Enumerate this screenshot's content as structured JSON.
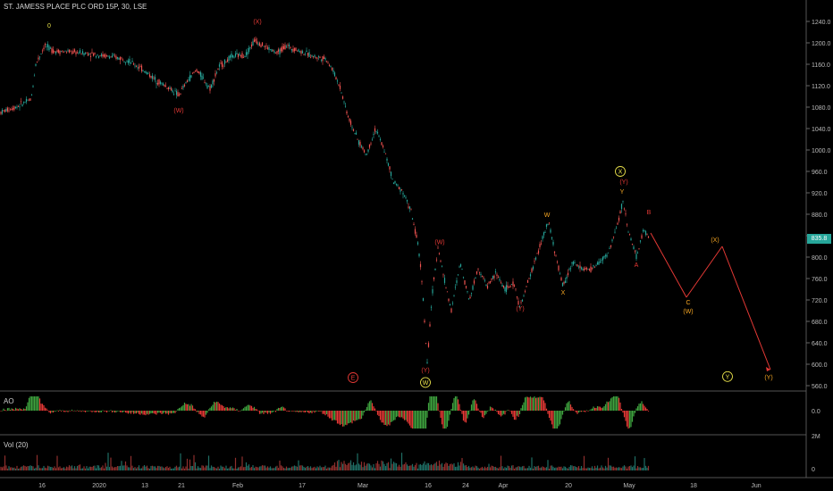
{
  "header": {
    "symbol_title": "ST. JAMESS PLACE PLC ORD 15P, 30, LSE"
  },
  "indicators": {
    "ao_label": "AO",
    "vol_label": "Vol (20)"
  },
  "last_price": "835.8",
  "colors": {
    "up": "#26a69a",
    "down": "#ef5350",
    "ao_up": "#3fa33f",
    "ao_down": "#e53935",
    "wave_red": "#e53935",
    "wave_orange": "#f5a623",
    "wave_yellow": "#e8e04a",
    "grid_text": "#bbbbbb"
  },
  "chart_data": {
    "type": "candlestick",
    "title": "ST. JAMESS PLACE PLC ORD 15P, 30, LSE",
    "price_axis": {
      "ticks": [
        "1240.0",
        "1200.0",
        "1160.0",
        "1120.0",
        "1080.0",
        "1040.0",
        "1000.0",
        "960.0",
        "920.0",
        "880.0",
        "840.0",
        "800.0",
        "760.0",
        "720.0",
        "680.0",
        "640.0",
        "600.0",
        "560.0"
      ],
      "ylim": [
        560,
        1240
      ]
    },
    "ao_axis": {
      "ticks": [
        "0.0"
      ]
    },
    "vol_axis": {
      "ticks": [
        "2M",
        "0"
      ]
    },
    "x_ticks": [
      "16",
      "2020",
      "13",
      "21",
      "Feb",
      "17",
      "Mar",
      "16",
      "24",
      "Apr",
      "20",
      "May",
      "18",
      "Jun"
    ],
    "price_path": [
      [
        0,
        1070
      ],
      [
        20,
        1082
      ],
      [
        35,
        1095
      ],
      [
        40,
        1160
      ],
      [
        50,
        1195
      ],
      [
        60,
        1185
      ],
      [
        80,
        1183
      ],
      [
        100,
        1180
      ],
      [
        120,
        1175
      ],
      [
        140,
        1170
      ],
      [
        160,
        1150
      ],
      [
        175,
        1130
      ],
      [
        190,
        1115
      ],
      [
        200,
        1102
      ],
      [
        210,
        1130
      ],
      [
        220,
        1150
      ],
      [
        235,
        1115
      ],
      [
        245,
        1155
      ],
      [
        260,
        1175
      ],
      [
        275,
        1178
      ],
      [
        285,
        1205
      ],
      [
        300,
        1190
      ],
      [
        310,
        1180
      ],
      [
        320,
        1195
      ],
      [
        335,
        1185
      ],
      [
        350,
        1175
      ],
      [
        365,
        1170
      ],
      [
        372,
        1150
      ],
      [
        380,
        1120
      ],
      [
        390,
        1060
      ],
      [
        400,
        1020
      ],
      [
        410,
        990
      ],
      [
        420,
        1040
      ],
      [
        430,
        1000
      ],
      [
        440,
        940
      ],
      [
        450,
        925
      ],
      [
        460,
        885
      ],
      [
        468,
        820
      ],
      [
        472,
        760
      ],
      [
        478,
        600
      ],
      [
        483,
        720
      ],
      [
        490,
        820
      ],
      [
        497,
        760
      ],
      [
        505,
        700
      ],
      [
        515,
        790
      ],
      [
        525,
        720
      ],
      [
        535,
        780
      ],
      [
        545,
        745
      ],
      [
        555,
        770
      ],
      [
        565,
        740
      ],
      [
        575,
        750
      ],
      [
        582,
        705
      ],
      [
        592,
        760
      ],
      [
        600,
        800
      ],
      [
        608,
        840
      ],
      [
        614,
        865
      ],
      [
        622,
        800
      ],
      [
        630,
        745
      ],
      [
        640,
        790
      ],
      [
        650,
        780
      ],
      [
        660,
        775
      ],
      [
        670,
        790
      ],
      [
        680,
        805
      ],
      [
        690,
        855
      ],
      [
        697,
        905
      ],
      [
        703,
        850
      ],
      [
        712,
        800
      ],
      [
        720,
        850
      ],
      [
        726,
        840
      ]
    ],
    "projection": [
      [
        728,
        845
      ],
      [
        768,
        725
      ],
      [
        808,
        820
      ],
      [
        862,
        590
      ]
    ],
    "wave_labels": [
      {
        "text": "0",
        "x": 55,
        "y": 1228,
        "color": "wave_yellow"
      },
      {
        "text": "(X)",
        "x": 288,
        "y": 1236,
        "color": "wave_red"
      },
      {
        "text": "(W)",
        "x": 200,
        "y": 1070,
        "color": "wave_red"
      },
      {
        "text": "(W)",
        "x": 492,
        "y": 824,
        "color": "wave_red"
      },
      {
        "text": "(Y)",
        "x": 476,
        "y": 585,
        "color": "wave_red"
      },
      {
        "text": "W",
        "x": 612,
        "y": 875,
        "color": "wave_orange"
      },
      {
        "text": "X",
        "x": 630,
        "y": 730,
        "color": "wave_orange"
      },
      {
        "text": "(Y)",
        "x": 582,
        "y": 700,
        "color": "wave_red"
      },
      {
        "text": "(Y)",
        "x": 698,
        "y": 937,
        "color": "wave_red"
      },
      {
        "text": "Y",
        "x": 696,
        "y": 918,
        "color": "wave_orange"
      },
      {
        "text": "B",
        "x": 726,
        "y": 880,
        "color": "wave_red"
      },
      {
        "text": "A",
        "x": 712,
        "y": 782,
        "color": "wave_red"
      },
      {
        "text": "C",
        "x": 770,
        "y": 712,
        "color": "wave_orange"
      },
      {
        "text": "(W)",
        "x": 770,
        "y": 695,
        "color": "wave_orange"
      },
      {
        "text": "(X)",
        "x": 800,
        "y": 828,
        "color": "wave_orange"
      },
      {
        "text": "(Y)",
        "x": 860,
        "y": 572,
        "color": "wave_orange"
      }
    ],
    "circled_labels": [
      {
        "text": "X",
        "x": 694,
        "y": 960,
        "color": "wave_yellow"
      },
      {
        "text": "E",
        "x": 395,
        "y": 575,
        "color": "wave_red"
      },
      {
        "text": "W",
        "x": 476,
        "y": 566,
        "color": "wave_yellow"
      },
      {
        "text": "Y",
        "x": 814,
        "y": 577,
        "color": "wave_yellow"
      }
    ]
  }
}
